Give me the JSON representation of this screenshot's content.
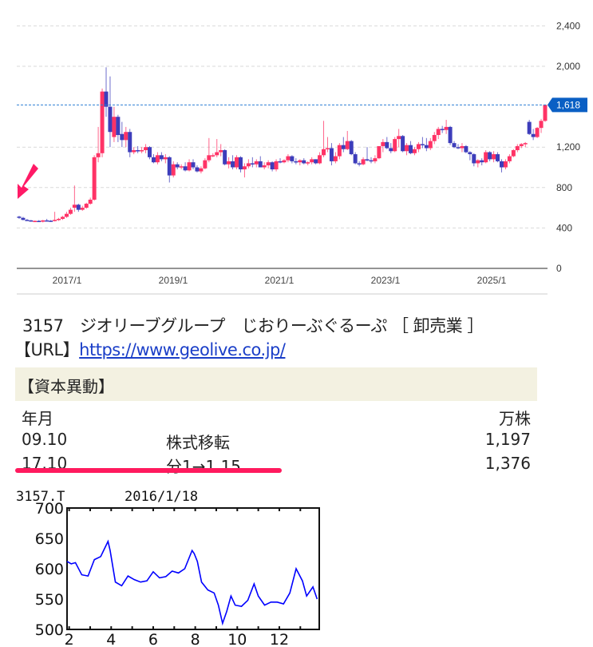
{
  "main_chart": {
    "y_axis_ticks": [
      "2,400",
      "2,000",
      "1,618",
      "1,200",
      "800",
      "400",
      "0"
    ],
    "y_tick_values": [
      2400,
      2000,
      1200,
      800,
      400,
      0
    ],
    "y_tick_labels": [
      "2,400",
      "2,000",
      "1,200",
      "800",
      "400",
      "0"
    ],
    "x_tick_labels": [
      "2017/1",
      "2019/1",
      "2021/1",
      "2023/1",
      "2025/1"
    ],
    "current_price_label": "1,618",
    "current_price": 1618,
    "colors": {
      "up": "#ff3366",
      "down": "#3d3dbb",
      "current_tag": "#0a5fc4",
      "grid": "#d9d9d9",
      "price_line": "#2d7fd4",
      "arrow": "#ff1a66"
    }
  },
  "chart_data": [
    {
      "type": "candlestick",
      "title": "",
      "period": "monthly",
      "xlabel": "",
      "ylabel": "",
      "ylim": [
        0,
        2400
      ],
      "grid": true,
      "x_ticks": [
        "2017/1",
        "2019/1",
        "2021/1",
        "2023/1",
        "2025/1"
      ],
      "last_price": 1618,
      "start": "2016/2",
      "candles": [
        [
          512,
          520,
          490,
          500
        ],
        [
          500,
          510,
          475,
          480
        ],
        [
          480,
          490,
          470,
          475
        ],
        [
          475,
          480,
          462,
          465
        ],
        [
          465,
          475,
          458,
          470
        ],
        [
          470,
          478,
          460,
          462
        ],
        [
          462,
          480,
          455,
          475
        ],
        [
          475,
          490,
          465,
          472
        ],
        [
          472,
          478,
          460,
          468
        ],
        [
          468,
          560,
          465,
          480
        ],
        [
          480,
          500,
          470,
          490
        ],
        [
          490,
          520,
          480,
          510
        ],
        [
          510,
          560,
          500,
          540
        ],
        [
          540,
          600,
          530,
          580
        ],
        [
          600,
          820,
          560,
          630
        ],
        [
          630,
          640,
          560,
          580
        ],
        [
          580,
          620,
          570,
          600
        ],
        [
          600,
          650,
          590,
          640
        ],
        [
          640,
          700,
          630,
          680
        ],
        [
          680,
          1120,
          670,
          1100
        ],
        [
          1100,
          1400,
          1050,
          1140
        ],
        [
          1140,
          1780,
          1100,
          1750
        ],
        [
          1750,
          1990,
          1500,
          1600
        ],
        [
          1600,
          1900,
          1200,
          1350
        ],
        [
          1300,
          1600,
          1250,
          1500
        ],
        [
          1500,
          1520,
          1250,
          1320
        ],
        [
          1330,
          1450,
          1200,
          1270
        ],
        [
          1270,
          1400,
          1200,
          1350
        ],
        [
          1350,
          1380,
          1100,
          1150
        ],
        [
          1150,
          1200,
          1130,
          1170
        ],
        [
          1170,
          1210,
          1140,
          1160
        ],
        [
          1160,
          1200,
          1140,
          1170
        ],
        [
          1170,
          1230,
          1140,
          1200
        ],
        [
          1200,
          1210,
          1080,
          1100
        ],
        [
          1100,
          1130,
          1040,
          1050
        ],
        [
          1050,
          1150,
          1030,
          1120
        ],
        [
          1120,
          1150,
          1060,
          1080
        ],
        [
          1080,
          1130,
          1040,
          1100
        ],
        [
          1100,
          1110,
          850,
          920
        ],
        [
          920,
          1060,
          900,
          1030
        ],
        [
          1030,
          1050,
          980,
          1000
        ],
        [
          1000,
          1030,
          980,
          1010
        ],
        [
          1010,
          1050,
          960,
          970
        ],
        [
          970,
          1080,
          960,
          1050
        ],
        [
          1050,
          1080,
          980,
          1000
        ],
        [
          1000,
          1020,
          950,
          960
        ],
        [
          960,
          1010,
          940,
          990
        ],
        [
          990,
          1090,
          980,
          1070
        ],
        [
          1070,
          1290,
          1050,
          1120
        ],
        [
          1120,
          1140,
          1100,
          1120
        ],
        [
          1120,
          1280,
          1100,
          1150
        ],
        [
          1150,
          1230,
          1110,
          1170
        ],
        [
          1170,
          1180,
          1020,
          1030
        ],
        [
          1030,
          1100,
          990,
          1060
        ],
        [
          1060,
          1120,
          980,
          1000
        ],
        [
          1000,
          1120,
          980,
          1100
        ],
        [
          1100,
          1110,
          950,
          980
        ],
        [
          980,
          1040,
          900,
          1010
        ],
        [
          1010,
          1080,
          990,
          1040
        ],
        [
          1040,
          1100,
          1000,
          1030
        ],
        [
          1030,
          1080,
          1000,
          1060
        ],
        [
          1060,
          1110,
          1020,
          1000
        ],
        [
          1000,
          1050,
          980,
          1020
        ],
        [
          1020,
          1070,
          990,
          1050
        ],
        [
          1050,
          1060,
          960,
          980
        ],
        [
          980,
          1080,
          960,
          1060
        ],
        [
          1060,
          1090,
          1040,
          1050
        ],
        [
          1050,
          1080,
          1040,
          1070
        ],
        [
          1070,
          1130,
          1050,
          1110
        ],
        [
          1110,
          1120,
          1040,
          1060
        ],
        [
          1060,
          1090,
          1030,
          1050
        ],
        [
          1050,
          1080,
          1020,
          1070
        ],
        [
          1070,
          1090,
          1030,
          1040
        ],
        [
          1040,
          1060,
          1020,
          1050
        ],
        [
          1050,
          1100,
          1030,
          1080
        ],
        [
          1080,
          1080,
          1030,
          1040
        ],
        [
          1040,
          1150,
          1030,
          1120
        ],
        [
          1120,
          1460,
          1100,
          1180
        ],
        [
          1180,
          1300,
          1150,
          1190
        ],
        [
          1190,
          1240,
          1020,
          1060
        ],
        [
          1060,
          1150,
          1040,
          1110
        ],
        [
          1110,
          1240,
          1080,
          1220
        ],
        [
          1220,
          1300,
          1150,
          1180
        ],
        [
          1180,
          1360,
          1170,
          1260
        ],
        [
          1260,
          1270,
          1120,
          1130
        ],
        [
          1130,
          1150,
          1030,
          1040
        ],
        [
          1040,
          1060,
          1010,
          1030
        ],
        [
          1030,
          1100,
          1020,
          1080
        ],
        [
          1080,
          1200,
          1060,
          1070
        ],
        [
          1070,
          1100,
          1040,
          1060
        ],
        [
          1060,
          1120,
          1040,
          1090
        ],
        [
          1090,
          1200,
          1080,
          1210
        ],
        [
          1210,
          1280,
          1150,
          1250
        ],
        [
          1250,
          1300,
          1180,
          1190
        ],
        [
          1190,
          1240,
          1140,
          1160
        ],
        [
          1160,
          1300,
          1150,
          1280
        ],
        [
          1280,
          1380,
          1200,
          1310
        ],
        [
          1310,
          1320,
          1150,
          1160
        ],
        [
          1160,
          1240,
          1120,
          1220
        ],
        [
          1220,
          1260,
          1130,
          1140
        ],
        [
          1140,
          1200,
          1120,
          1180
        ],
        [
          1180,
          1250,
          1150,
          1230
        ],
        [
          1230,
          1300,
          1190,
          1220
        ],
        [
          1220,
          1290,
          1160,
          1190
        ],
        [
          1190,
          1290,
          1170,
          1260
        ],
        [
          1260,
          1350,
          1230,
          1320
        ],
        [
          1320,
          1400,
          1280,
          1380
        ],
        [
          1380,
          1410,
          1340,
          1370
        ],
        [
          1370,
          1470,
          1330,
          1400
        ],
        [
          1400,
          1410,
          1220,
          1240
        ],
        [
          1240,
          1260,
          1190,
          1200
        ],
        [
          1200,
          1230,
          1180,
          1190
        ],
        [
          1190,
          1240,
          1150,
          1210
        ],
        [
          1210,
          1220,
          1140,
          1150
        ],
        [
          1150,
          1160,
          1070,
          1130
        ],
        [
          1130,
          1140,
          1010,
          1040
        ],
        [
          1040,
          1080,
          1000,
          1070
        ],
        [
          1070,
          1090,
          1020,
          1050
        ],
        [
          1050,
          1170,
          1040,
          1150
        ],
        [
          1150,
          1160,
          1060,
          1080
        ],
        [
          1080,
          1160,
          1050,
          1130
        ],
        [
          1130,
          1150,
          1050,
          1060
        ],
        [
          1060,
          1080,
          950,
          1000
        ],
        [
          1000,
          1080,
          980,
          1060
        ],
        [
          1060,
          1130,
          1040,
          1110
        ],
        [
          1110,
          1180,
          1100,
          1170
        ],
        [
          1170,
          1230,
          1150,
          1210
        ],
        [
          1210,
          1240,
          1190,
          1230
        ],
        [
          1230,
          1250,
          1200,
          1240
        ],
        [
          1450,
          1470,
          1320,
          1330
        ],
        [
          1330,
          1380,
          1270,
          1300
        ],
        [
          1300,
          1400,
          1290,
          1390
        ],
        [
          1390,
          1480,
          1340,
          1460
        ],
        [
          1460,
          1618,
          1450,
          1618
        ]
      ]
    },
    {
      "type": "line",
      "title": "3157.T",
      "subtitle": "2016/1/18",
      "xlabel": "",
      "ylabel": "",
      "ylim": [
        500,
        700
      ],
      "y_ticks": [
        500,
        550,
        600,
        650,
        700
      ],
      "x_ticks": [
        "2",
        "4",
        "6",
        "8",
        "10",
        "12"
      ],
      "line_color": "#0000ff",
      "x": [
        1.9,
        2.1,
        2.3,
        2.6,
        2.9,
        3.2,
        3.5,
        3.85,
        3.95,
        4.2,
        4.5,
        4.8,
        5.1,
        5.4,
        5.7,
        6.0,
        6.3,
        6.6,
        6.9,
        7.2,
        7.5,
        7.85,
        7.95,
        8.1,
        8.3,
        8.6,
        8.9,
        9.1,
        9.3,
        9.5,
        9.7,
        9.9,
        10.2,
        10.5,
        10.8,
        11.0,
        11.3,
        11.6,
        11.9,
        12.2,
        12.5,
        12.8,
        13.1,
        13.3,
        13.6,
        13.8
      ],
      "y": [
        612,
        608,
        610,
        590,
        588,
        615,
        620,
        645,
        630,
        578,
        572,
        588,
        582,
        578,
        580,
        595,
        585,
        587,
        596,
        593,
        600,
        630,
        625,
        612,
        578,
        565,
        560,
        540,
        510,
        530,
        555,
        540,
        538,
        548,
        575,
        555,
        540,
        545,
        545,
        542,
        560,
        600,
        580,
        555,
        570,
        550
      ]
    }
  ],
  "stock_info": {
    "code": "3157",
    "name": "ジオリーブグループ",
    "reading": "じおりーぶぐるーぷ",
    "sector_label": "［ 卸売業 ］",
    "title_line": "3157　ジオリーブグループ　じおりーぶぐるーぷ ［ 卸売業 ］",
    "url_label": "【URL】",
    "url": "https://www.geolive.co.jp/"
  },
  "capital_changes": {
    "heading": "【資本異動】",
    "header": {
      "date": "年月",
      "event": "",
      "shares": "万株"
    },
    "rows": [
      {
        "date": "09.10",
        "event": "株式移転",
        "shares": "1,197"
      },
      {
        "date": "17.10",
        "event": "分1→1.15",
        "shares": "1,376"
      }
    ],
    "highlight_color": "#ff1a5e"
  },
  "mini_chart": {
    "ticker": "3157.T",
    "date": "2016/1/18",
    "y_labels": [
      "700",
      "650",
      "600",
      "550",
      "500"
    ],
    "x_labels": [
      "2",
      "4",
      "6",
      "8",
      "10",
      "12"
    ]
  }
}
